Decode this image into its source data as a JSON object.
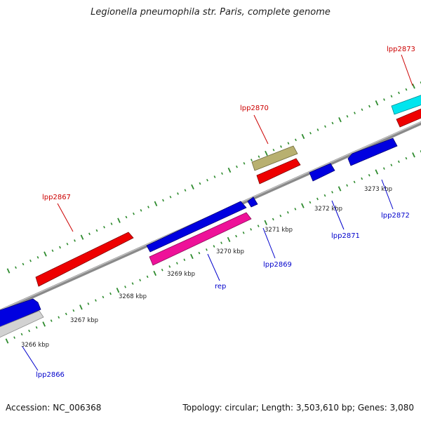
{
  "title": "Legionella pneumophila str. Paris, complete genome",
  "footer": {
    "accession": "Accession: NC_006368",
    "summary": "Topology: circular; Length: 3,503,610 bp; Genes: 3,080"
  },
  "colors": {
    "backbone": "#8a8a8a",
    "tick": "#2e8b2e",
    "label_upper": "#cc0000",
    "label_lower": "#0000cc"
  },
  "scale_labels": [
    "3266 kbp",
    "3267 kbp",
    "3268 kbp",
    "3269 kbp",
    "3270 kbp",
    "3271 kbp",
    "3272 kbp",
    "3273 kbp"
  ],
  "features": [
    {
      "name": "lpp2866",
      "color": "#0000e0",
      "track": "blue-lane",
      "direction": "forward"
    },
    {
      "name": "lpp2866",
      "color": "#cfcfcf",
      "track": "lower-lane",
      "direction": "forward",
      "labelled": true
    },
    {
      "name": "lpp2867",
      "color": "#ee0000",
      "track": "upper-lane",
      "direction": "forward",
      "labelled": true
    },
    {
      "name": "rep",
      "color": "#0000e0",
      "track": "blue-lane",
      "direction": "forward"
    },
    {
      "name": "rep",
      "color": "#ee1199",
      "track": "lower-lane",
      "direction": "forward",
      "labelled": true
    },
    {
      "name": "lpp2869",
      "color": "#0000e0",
      "track": "blue-lane",
      "direction": "forward",
      "labelled": true
    },
    {
      "name": "lpp2870",
      "color": "#b8b070",
      "track": "top-lane",
      "direction": "forward",
      "labelled": true
    },
    {
      "name": "lpp2870",
      "color": "#ee0000",
      "track": "upper-lane",
      "direction": "forward"
    },
    {
      "name": "lpp2871",
      "color": "#0000e0",
      "track": "blue-lane",
      "direction": "forward",
      "labelled": true
    },
    {
      "name": "lpp2872",
      "color": "#0000e0",
      "track": "blue-lane",
      "direction": "reverse",
      "labelled": true
    },
    {
      "name": "lpp2873",
      "color": "#00e5ee",
      "track": "top-lane",
      "direction": "reverse",
      "labelled": true
    },
    {
      "name": "lpp2873",
      "color": "#ee0000",
      "track": "upper-lane",
      "direction": "reverse"
    }
  ]
}
